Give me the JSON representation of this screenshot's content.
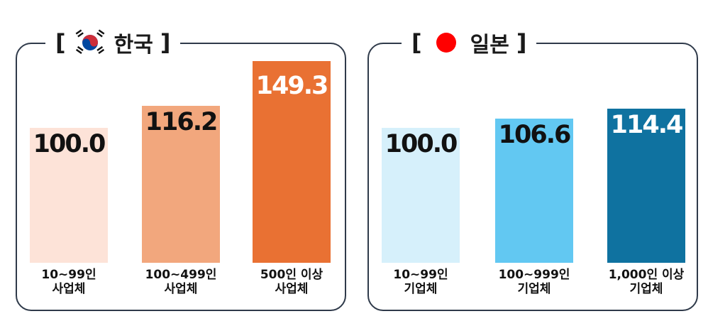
{
  "chart_data": [
    {
      "type": "bar",
      "title": "한국",
      "flag": "korea-flag-icon",
      "categories": [
        {
          "line1": "10~99인",
          "line2": "사업체"
        },
        {
          "line1": "100~499인",
          "line2": "사업체"
        },
        {
          "line1": "500인 이상",
          "line2": "사업체"
        }
      ],
      "values": [
        100.0,
        116.2,
        149.3
      ],
      "value_labels": [
        "100.0",
        "116.2",
        "149.3"
      ],
      "colors": [
        "#fde3d8",
        "#f2a77d",
        "#e97133"
      ],
      "label_colors": [
        "#111111",
        "#111111",
        "#ffffff"
      ],
      "ylim": [
        0,
        160
      ]
    },
    {
      "type": "bar",
      "title": "일본",
      "flag": "japan-flag-icon",
      "categories": [
        {
          "line1": "10~99인",
          "line2": "기업체"
        },
        {
          "line1": "100~999인",
          "line2": "기업체"
        },
        {
          "line1": "1,000인 이상",
          "line2": "기업체"
        }
      ],
      "values": [
        100.0,
        106.6,
        114.4
      ],
      "value_labels": [
        "100.0",
        "106.6",
        "114.4"
      ],
      "colors": [
        "#d6f0fb",
        "#62c8f2",
        "#0f72a0"
      ],
      "label_colors": [
        "#111111",
        "#111111",
        "#ffffff"
      ],
      "ylim": [
        0,
        160
      ]
    }
  ]
}
